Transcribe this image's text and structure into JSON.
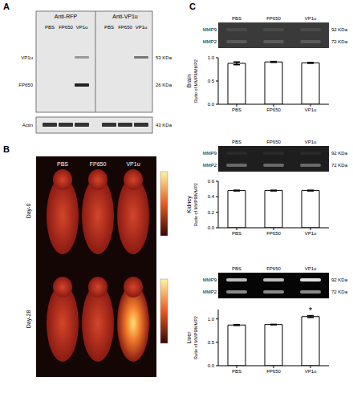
{
  "panels": {
    "A": {
      "label": "A",
      "antibodies": [
        "Anti-RFP",
        "Anti-VP1u"
      ],
      "lanes": [
        "PBS",
        "FP650",
        "VP1u"
      ],
      "bands": [
        {
          "label": "VP1u",
          "size": "53 KDa"
        },
        {
          "label": "FP650",
          "size": "26 KDa"
        },
        {
          "label": "Actin",
          "size": "43 KDa"
        }
      ]
    },
    "B": {
      "label": "B",
      "groups": [
        "PBS",
        "FP650",
        "VP1u"
      ],
      "days": [
        "Day-0",
        "Day-28"
      ]
    },
    "C": {
      "label": "C",
      "lanes": [
        "PBS",
        "FP650",
        "VP1u"
      ],
      "bands": [
        {
          "label": "MMP9",
          "size": "92 KDa"
        },
        {
          "label": "MMP2",
          "size": "72 KDa"
        }
      ]
    }
  },
  "chart_data": [
    {
      "type": "bar",
      "title": "Brain",
      "ylabel": "Ratio of MMP9/MMP2",
      "categories": [
        "PBS",
        "FP650",
        "VP1u"
      ],
      "values": [
        0.88,
        0.91,
        0.89
      ],
      "errors": [
        0.03,
        0.01,
        0.01
      ],
      "color": "#ffffff",
      "ylim": [
        0,
        1.0
      ],
      "yticks": [
        {
          "value": 0,
          "label": "0.0"
        },
        {
          "value": 0.5,
          "label": "0.5"
        },
        {
          "value": 1.0,
          "label": "1.0"
        }
      ]
    },
    {
      "type": "bar",
      "title": "Kidney",
      "ylabel": "Ratio of MMP9/MMP2",
      "categories": [
        "PBS",
        "FP650",
        "VP1u"
      ],
      "values": [
        0.48,
        0.48,
        0.48
      ],
      "errors": [
        0.005,
        0.005,
        0.005
      ],
      "color": "#ffffff",
      "ylim": [
        0,
        0.6
      ],
      "yticks": [
        {
          "value": 0,
          "label": "0.0"
        },
        {
          "value": 0.2,
          "label": "0.2"
        },
        {
          "value": 0.4,
          "label": "0.4"
        },
        {
          "value": 0.6,
          "label": "0.6"
        }
      ]
    },
    {
      "type": "bar",
      "title": "Liver",
      "ylabel": "Ratio of MMP9/MMP2",
      "categories": [
        "PBS",
        "FP650",
        "VP1u"
      ],
      "values": [
        0.87,
        0.88,
        1.05
      ],
      "errors": [
        0.01,
        0.005,
        0.02
      ],
      "color": "#ffffff",
      "ylim": [
        0,
        1.2
      ],
      "yticks": [
        {
          "value": 0,
          "label": "0.0"
        },
        {
          "value": 0.5,
          "label": "0.5"
        },
        {
          "value": 1.0,
          "label": "1.0"
        }
      ],
      "annotations": [
        {
          "text": "*",
          "category": "VP1u"
        }
      ]
    }
  ]
}
